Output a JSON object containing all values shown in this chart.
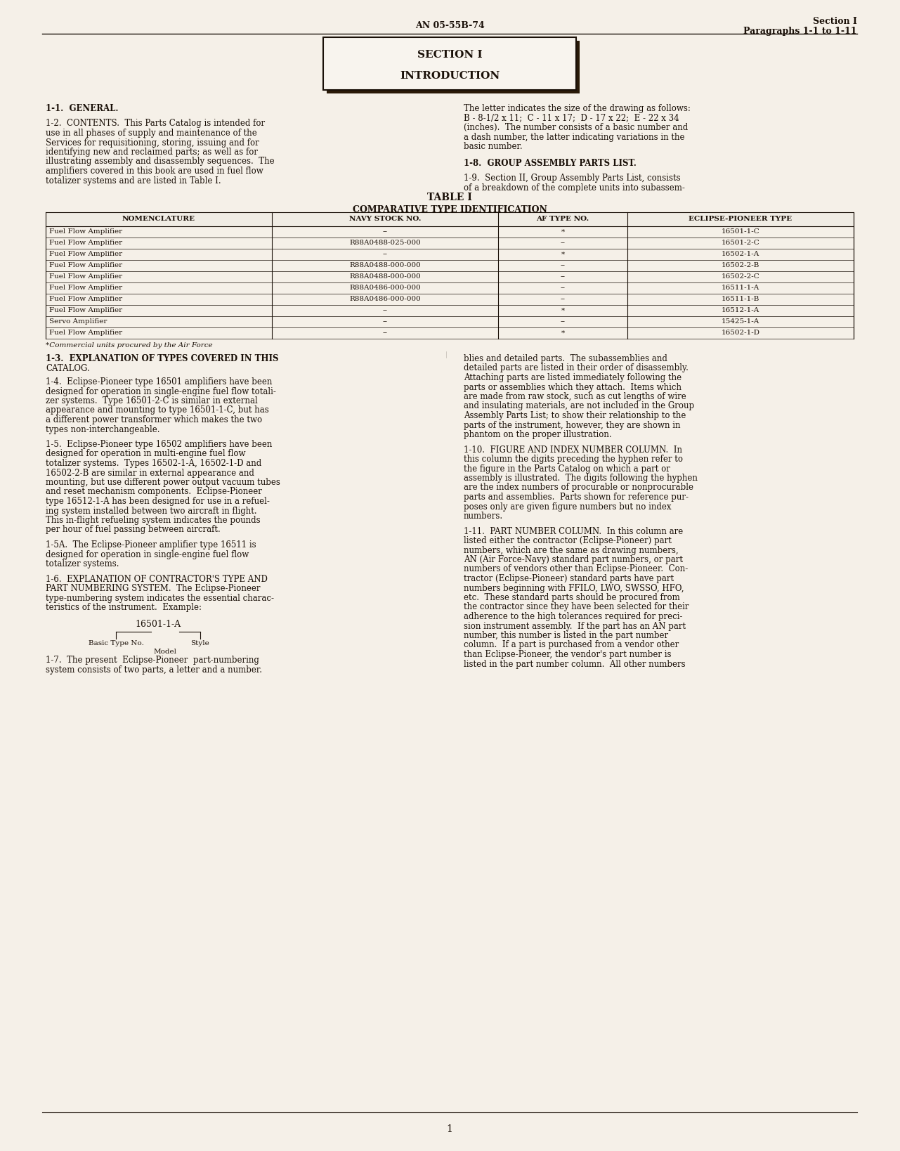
{
  "bg_color": "#f5f0e8",
  "text_color": "#1a1008",
  "page_header_left": "AN 05-55B-74",
  "page_header_right_line1": "Section I",
  "page_header_right_line2": "Paragraphs 1-1 to 1-11",
  "section_box_line1": "SECTION I",
  "section_box_line2": "INTRODUCTION",
  "para_1_1_heading": "1-1.  GENERAL.",
  "para_1_2": "1-2.  CONTENTS.  This Parts Catalog is intended for\nuse in all phases of supply and maintenance of the\nServices for requisitioning, storing, issuing and for\nidentifying new and reclaimed parts; as well as for\nillustrating assembly and disassembly sequences.  The\namplifiers covered in this book are used in fuel flow\ntotalizer systems and are listed in Table I.",
  "right_col_para1": "The letter indicates the size of the drawing as follows:\nB - 8-1/2 x 11;  C - 11 x 17;  D - 17 x 22;  E - 22 x 34\n(inches).  The number consists of a basic number and\na dash number, the latter indicating variations in the\nbasic number.",
  "para_1_8_heading": "1-8.  GROUP ASSEMBLY PARTS LIST.",
  "para_1_9": "1-9.  Section II, Group Assembly Parts List, consists\nof a breakdown of the complete units into subassem-",
  "table_title": "TABLE I",
  "table_subtitle": "COMPARATIVE TYPE IDENTIFICATION",
  "table_headers": [
    "NOMENCLATURE",
    "NAVY STOCK NO.",
    "AF TYPE NO.",
    "ECLIPSE-PIONEER TYPE"
  ],
  "table_rows": [
    [
      "Fuel Flow Amplifier",
      "--",
      "*",
      "16501-1-C"
    ],
    [
      "Fuel Flow Amplifier",
      "R88A0488-025-000",
      "--",
      "16501-2-C"
    ],
    [
      "Fuel Flow Amplifier",
      "--",
      "*",
      "16502-1-A"
    ],
    [
      "Fuel Flow Amplifier",
      "R88A0488-000-000",
      "--",
      "16502-2-B"
    ],
    [
      "Fuel Flow Amplifier",
      "R88A0488-000-000",
      "--",
      "16502-2-C"
    ],
    [
      "Fuel Flow Amplifier",
      "R88A0486-000-000",
      "--",
      "16511-1-A"
    ],
    [
      "Fuel Flow Amplifier",
      "R88A0486-000-000",
      "--",
      "16511-1-B"
    ],
    [
      "Fuel Flow Amplifier",
      "--",
      "*",
      "16512-1-A"
    ],
    [
      "Servo Amplifier",
      "--",
      "--",
      "15425-1-A"
    ],
    [
      "Fuel Flow Amplifier",
      "--",
      "*",
      "16502-1-D"
    ]
  ],
  "table_footnote": "*Commercial units procured by the Air Force",
  "para_1_3_heading": "1-3.  EXPLANATION OF TYPES COVERED IN THIS\nCATALOG.",
  "para_1_3": "1-4.  Eclipse-Pioneer type 16501 amplifiers have been\ndesigned for operation in single-engine fuel flow totali-\nzer systems.  Type 16501-2-C is similar in external\nappearance and mounting to type 16501-1-C, but has\na different power transformer which makes the two\ntypes non-interchangeable.",
  "para_1_5": "1-5.  Eclipse-Pioneer type 16502 amplifiers have been\ndesigned for operation in multi-engine fuel flow\ntotalizer systems.  Types 16502-1-A, 16502-1-D and\n16502-2-B are similar in external appearance and\nmounting, but use different power output vacuum tubes\nand reset mechanism components.  Eclipse-Pioneer\ntype 16512-1-A has been designed for use in a refuel-\ning system installed between two aircraft in flight.\nThis in-flight refueling system indicates the pounds\nper hour of fuel passing between aircraft.",
  "para_1_5a": "1-5A.  The Eclipse-Pioneer amplifier type 16511 is\ndesigned for operation in single-engine fuel flow\ntotalizer systems.",
  "para_1_6_heading": "1-6.  EXPLANATION OF CONTRACTOR'S TYPE AND\nPART NUMBERING SYSTEM.  The Eclipse-Pioneer\ntype-numbering system indicates the essential charac-\nteristics of the instrument.  Example:",
  "example_label": "16501-1-A",
  "example_basic": "Basic Type No.",
  "example_model": "Model",
  "example_style": "Style",
  "para_1_7": "1-7.  The present  Eclipse-Pioneer  part-numbering\nsystem consists of two parts, a letter and a number.",
  "right_col_para_blies": "blies and detailed parts.  The subassemblies and\ndetailed parts are listed in their order of disassembly.\nAttaching parts are listed immediately following the\nparts or assemblies which they attach.  Items which\nare made from raw stock, such as cut lengths of wire\nand insulating materials, are not included in the Group\nAssembly Parts List; to show their relationship to the\nparts of the instrument, however, they are shown in\nphantom on the proper illustration.",
  "para_1_10_heading": "1-10.  FIGURE AND INDEX NUMBER COLUMN.  In\nthis column the digits preceding the hyphen refer to\nthe figure in the Parts Catalog on which a part or\nassembly is illustrated.  The digits following the hyphen\nare the index numbers of procurable or nonprocurable\nparts and assemblies.  Parts shown for reference pur-\nposes only are given figure numbers but no index\nnumbers.",
  "para_1_11_heading": "1-11.  PART NUMBER COLUMN.  In this column are\nlisted either the contractor (Eclipse-Pioneer) part\nnumbers, which are the same as drawing numbers,\nAN (Air Force-Navy) standard part numbers, or part\nnumbers of vendors other than Eclipse-Pioneer.  Con-\ntractor (Eclipse-Pioneer) standard parts have part\nnumbers beginning with FFILO, LWO, SWSSO, HFO,\netc.  These standard parts should be procured from\nthe contractor since they have been selected for their\nadherence to the high tolerances required for preci-\nsion instrument assembly.  If the part has an AN part\nnumber, this number is listed in the part number\ncolumn.  If a part is purchased from a vendor other\nthan Eclipse-Pioneer, the vendor's part number is\nlisted in the part number column.  All other numbers",
  "page_number": "1"
}
